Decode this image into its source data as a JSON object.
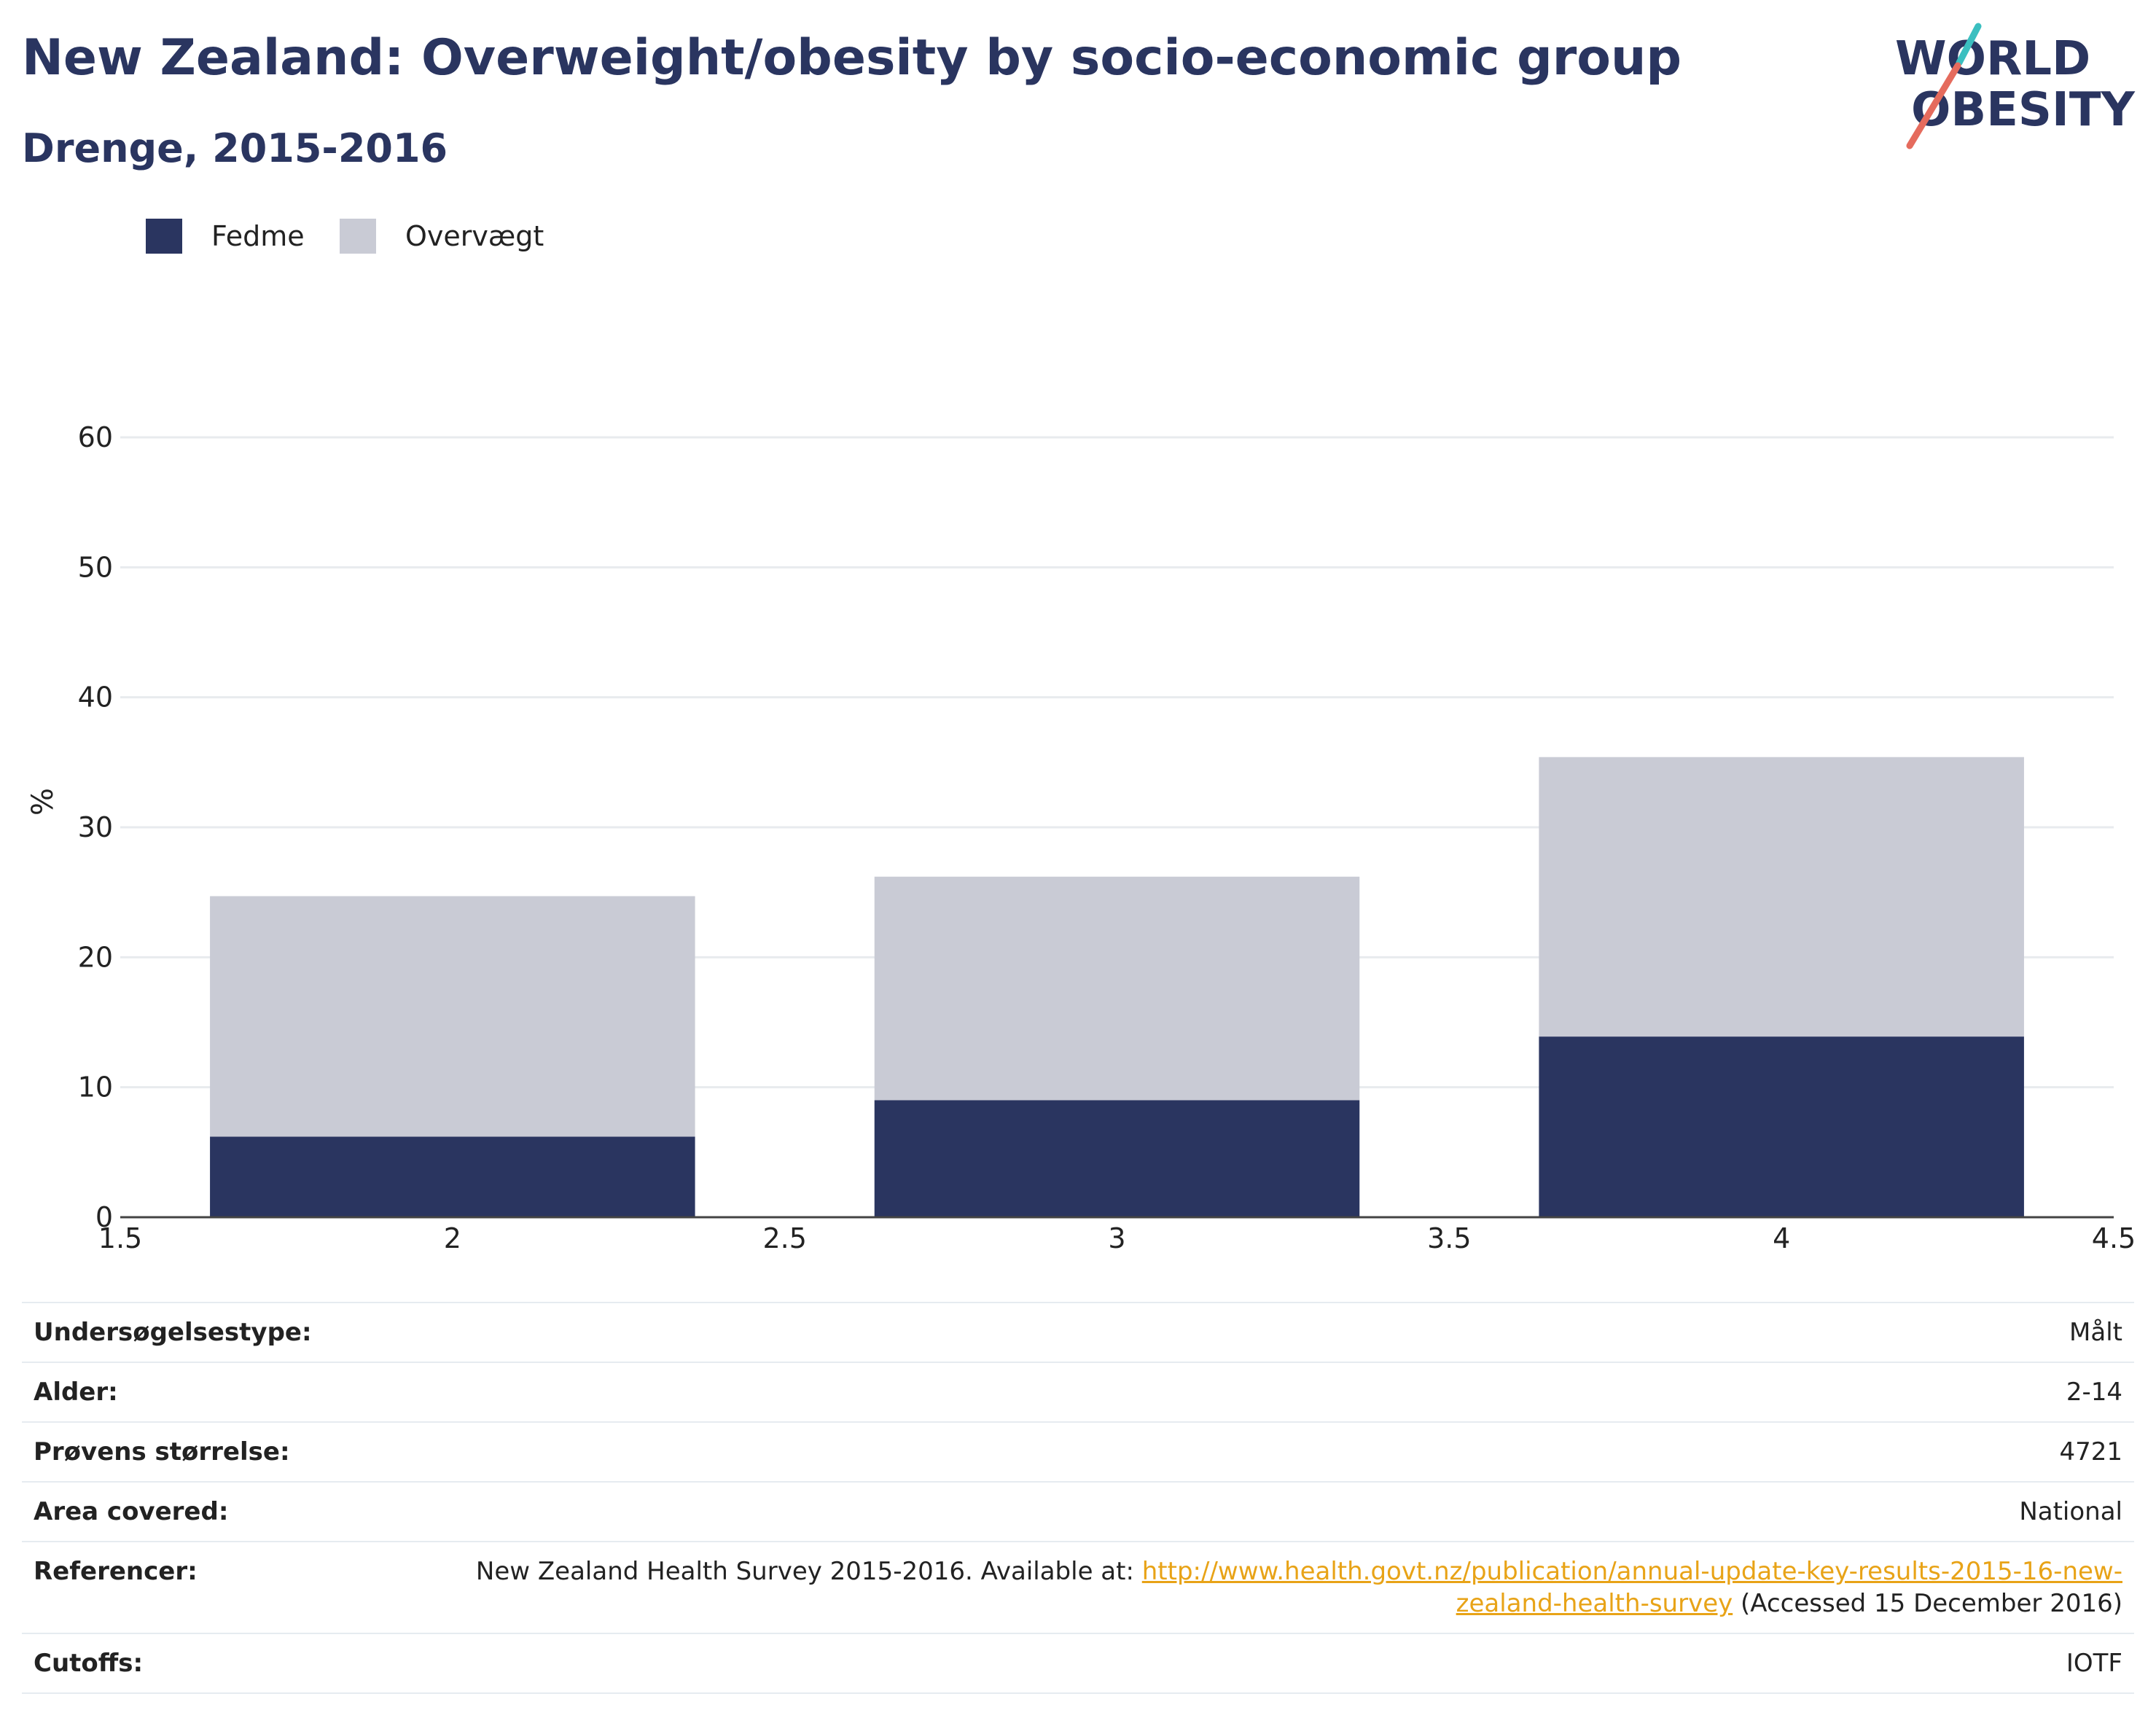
{
  "header": {
    "title": "New Zealand: Overweight/obesity by socio-economic group",
    "subtitle": "Drenge, 2015-2016"
  },
  "logo": {
    "line1": "WORLD",
    "line2": "OBESITY"
  },
  "colors": {
    "obesity": "#2a3560",
    "overweight": "#c9cbd5",
    "title": "#2a3560",
    "link": "#e8a317",
    "logo_teal": "#3bbfc0",
    "logo_coral": "#e56b5d"
  },
  "chart_data": {
    "type": "bar",
    "stacked": true,
    "x": [
      2,
      3,
      4
    ],
    "x_ticks": [
      "1.5",
      "2",
      "2.5",
      "3",
      "3.5",
      "4",
      "4.5"
    ],
    "xlim": [
      1.5,
      4.5
    ],
    "y_ticks": [
      "0",
      "10",
      "20",
      "30",
      "40",
      "50",
      "60"
    ],
    "ylim": [
      0,
      60
    ],
    "ylabel": "%",
    "grid": true,
    "legend_placement": "top-left",
    "series": [
      {
        "name": "Fedme",
        "values": [
          6.2,
          9.0,
          13.9
        ]
      },
      {
        "name": "Overvægt",
        "values": [
          18.5,
          17.2,
          21.5
        ]
      }
    ]
  },
  "info": {
    "rows": [
      {
        "label": "Undersøgelsestype:",
        "value": "Målt"
      },
      {
        "label": "Alder:",
        "value": "2-14"
      },
      {
        "label": "Prøvens størrelse:",
        "value": "4721"
      },
      {
        "label": "Area covered:",
        "value": "National"
      }
    ],
    "references": {
      "label": "Referencer:",
      "text_before": "New Zealand Health Survey 2015-2016. Available at: ",
      "link_part1": "http://www.health.govt.nz/publication/annual-update-key-results-2015-16-new-",
      "link_part2": "zealand-health-survey",
      "text_after": " (Accessed 15 December 2016)"
    },
    "cutoffs": {
      "label": "Cutoffs:",
      "value": "IOTF"
    }
  }
}
